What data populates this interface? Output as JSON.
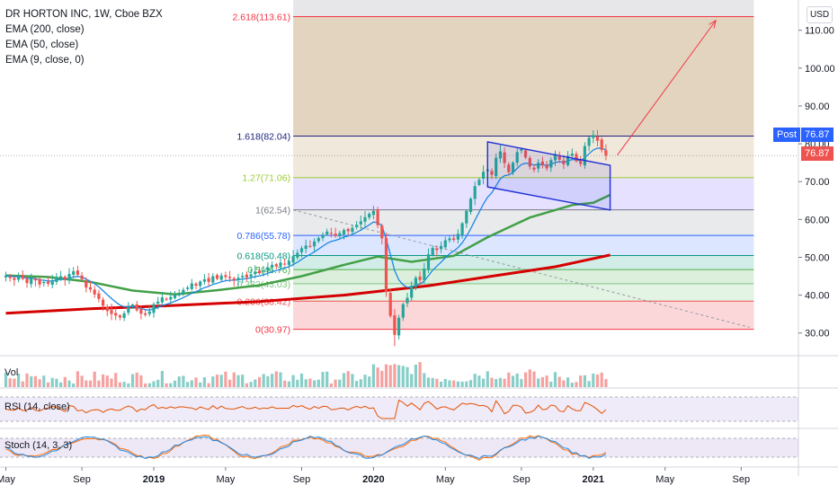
{
  "legend": {
    "title": "DR HORTON INC, 1W, Cboe BZX",
    "indicators": [
      "EMA (200, close)",
      "EMA (50, close)",
      "EMA (9, close, 0)"
    ]
  },
  "panes": {
    "volume_label": "Vol",
    "rsi_label": "RSI (14, close)",
    "stoch_label": "Stoch (14, 3, 3)"
  },
  "currency_label": "USD",
  "price_badges": {
    "post_label": "Post",
    "post_value": "76.87",
    "last_value": "76.87"
  },
  "colors": {
    "fib_0": "#f23645",
    "fib_0236": "#ef5350",
    "fib_0382": "#81c784",
    "fib_05": "#4caf50",
    "fib_0618": "#089981",
    "fib_0786": "#2962ff",
    "fib_1": "#787b86",
    "fib_127": "#9acd32",
    "fib_1618": "#1a237e",
    "fib_2618": "#f23645",
    "ema200": "#d50000",
    "ema50": "#43a047",
    "ema9": "#1e88e5",
    "up": "#26a69a",
    "down": "#ef5350",
    "channel": "#1e2fd6",
    "arrow": "#f23645",
    "rsi": "#e65100",
    "stoch_k": "#1e88e5",
    "stoch_d": "#ff6d00"
  },
  "chart_data": {
    "type": "candlestick",
    "symbol": "DR HORTON INC",
    "interval": "1W",
    "y_axis": {
      "range": [
        24,
        118
      ],
      "ticks": [
        30,
        40,
        50,
        60,
        70,
        80,
        90,
        100,
        110
      ],
      "tick_labels": [
        "30.00",
        "40.00",
        "50.00",
        "60.00",
        "70.00",
        "80.00",
        "90.00",
        "100.00",
        "110.00"
      ]
    },
    "x_axis": {
      "ticks": [
        "May",
        "Sep",
        "2019",
        "May",
        "Sep",
        "2020",
        "May",
        "Sep",
        "2021",
        "May",
        "Sep"
      ],
      "tick_bold": [
        false,
        false,
        true,
        false,
        false,
        true,
        false,
        false,
        true,
        false,
        false
      ],
      "tick_week_index": [
        0,
        18,
        35,
        52,
        70,
        87,
        104,
        122,
        139,
        156,
        174
      ]
    },
    "fib_levels": [
      {
        "ratio": 0,
        "price": 30.97,
        "label": "0(30.97)"
      },
      {
        "ratio": 0.236,
        "price": 38.42,
        "label": "0.236(38.42)"
      },
      {
        "ratio": 0.382,
        "price": 43.03,
        "label": "0.382(43.03)"
      },
      {
        "ratio": 0.5,
        "price": 46.76,
        "label": "0.5(46.76)"
      },
      {
        "ratio": 0.618,
        "price": 50.48,
        "label": "0.618(50.48)"
      },
      {
        "ratio": 0.786,
        "price": 55.78,
        "label": "0.786(55.78)"
      },
      {
        "ratio": 1,
        "price": 62.54,
        "label": "1(62.54)"
      },
      {
        "ratio": 1.27,
        "price": 71.06,
        "label": "1.27(71.06)"
      },
      {
        "ratio": 1.618,
        "price": 82.04,
        "label": "1.618(82.04)"
      },
      {
        "ratio": 2.618,
        "price": 113.61,
        "label": "2.618(113.61)"
      }
    ],
    "fib_week_start": 68,
    "fib_week_end": 177,
    "close": [
      45.2,
      44.5,
      44.0,
      45.1,
      44.3,
      43.2,
      44.6,
      43.9,
      42.8,
      43.5,
      43.0,
      43.7,
      44.8,
      45.0,
      44.1,
      45.6,
      46.3,
      45.4,
      44.2,
      42.0,
      41.5,
      40.2,
      39.0,
      37.2,
      35.8,
      35.0,
      34.6,
      34.1,
      35.2,
      36.8,
      37.5,
      36.0,
      35.1,
      34.8,
      35.7,
      37.6,
      38.3,
      39.4,
      38.8,
      39.5,
      40.1,
      40.6,
      41.4,
      42.0,
      43.1,
      42.5,
      43.6,
      44.2,
      43.5,
      45.0,
      44.3,
      45.2,
      44.8,
      44.5,
      43.9,
      44.6,
      45.1,
      44.7,
      45.5,
      46.2,
      45.8,
      46.5,
      47.3,
      48.0,
      47.6,
      48.6,
      48.2,
      49.0,
      50.3,
      51.2,
      52.4,
      53.1,
      53.0,
      54.2,
      55.1,
      56.0,
      56.8,
      56.2,
      55.6,
      56.4,
      57.2,
      56.9,
      57.8,
      58.6,
      59.5,
      60.6,
      61.5,
      62.3,
      58.5,
      55.0,
      40.8,
      34.5,
      29.5,
      34.0,
      37.6,
      39.3,
      42.5,
      44.6,
      44.0,
      47.0,
      50.8,
      52.5,
      51.9,
      53.0,
      54.5,
      55.0,
      54.6,
      56.2,
      59.0,
      62.3,
      65.5,
      68.8,
      70.5,
      72.6,
      73.2,
      71.8,
      76.3,
      78.0,
      74.9,
      72.5,
      75.0,
      77.8,
      78.6,
      76.4,
      74.0,
      73.2,
      75.0,
      74.3,
      73.5,
      75.7,
      77.3,
      75.8,
      74.6,
      76.8,
      77.4,
      75.4,
      74.7,
      79.4,
      81.6,
      82.3,
      80.8,
      78.4,
      76.87
    ],
    "ema_200_path": [
      [
        0,
        35.2
      ],
      [
        20,
        36.4
      ],
      [
        40,
        37.3
      ],
      [
        60,
        38.3
      ],
      [
        80,
        40.0
      ],
      [
        100,
        42.5
      ],
      [
        115,
        45.0
      ],
      [
        130,
        47.5
      ],
      [
        143,
        50.6
      ]
    ],
    "ema_50_path": [
      [
        0,
        45.2
      ],
      [
        10,
        44.8
      ],
      [
        20,
        43.5
      ],
      [
        30,
        41.2
      ],
      [
        40,
        40.2
      ],
      [
        50,
        41.3
      ],
      [
        60,
        42.6
      ],
      [
        70,
        45.0
      ],
      [
        80,
        48.0
      ],
      [
        88,
        50.2
      ],
      [
        96,
        48.8
      ],
      [
        106,
        50.4
      ],
      [
        114,
        55.3
      ],
      [
        124,
        60.5
      ],
      [
        134,
        63.8
      ],
      [
        139,
        64.4
      ],
      [
        143,
        66.5
      ]
    ],
    "channel": {
      "upper": [
        [
          114,
          80.5
        ],
        [
          143,
          74.3
        ]
      ],
      "lower": [
        [
          114,
          68.6
        ],
        [
          143,
          62.5
        ]
      ]
    },
    "projection_arrow": {
      "from": [
        143,
        77.0
      ],
      "to": [
        168,
        112.6
      ]
    },
    "trend_line": {
      "from": [
        68,
        62.5
      ],
      "to": [
        176,
        31.5
      ]
    },
    "current_price": 76.87
  }
}
